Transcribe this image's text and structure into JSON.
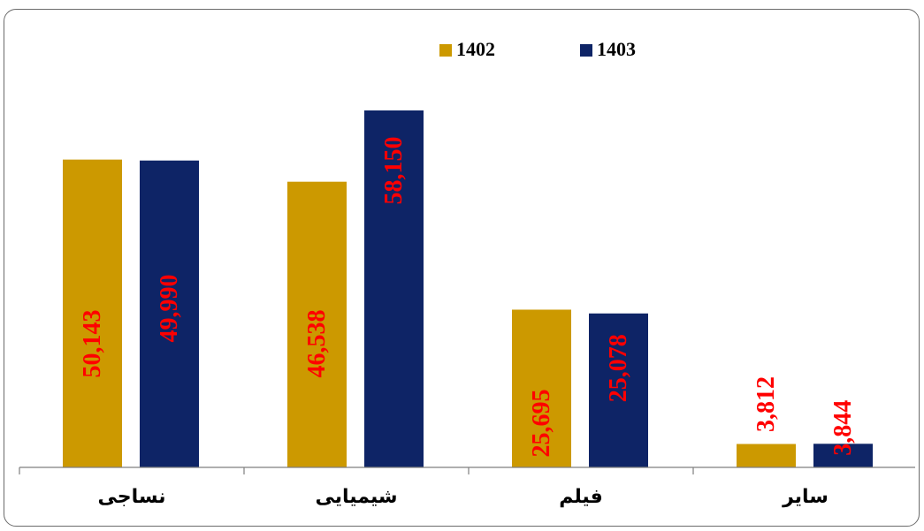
{
  "chart_data": {
    "type": "bar",
    "categories": [
      "نساجی",
      "شیمیایی",
      "فیلم",
      "سایر"
    ],
    "series": [
      {
        "name": "1402",
        "values": [
          50143,
          46538,
          25695,
          3812
        ],
        "labels": [
          "50,143",
          "46,538",
          "25,695",
          "3,812"
        ]
      },
      {
        "name": "1403",
        "values": [
          49990,
          58150,
          25078,
          3844
        ],
        "labels": [
          "49,990",
          "58,150",
          "25,078",
          "3,844"
        ]
      }
    ],
    "ylim": [
      0,
      60000
    ],
    "legend_position": "top-center",
    "grid": false,
    "title": "",
    "xlabel": "",
    "ylabel": ""
  },
  "colors": {
    "series_1402": "#CC9900",
    "series_1403": "#0E2466",
    "data_label": "#FF0000",
    "axis": "#7f7f7f"
  }
}
